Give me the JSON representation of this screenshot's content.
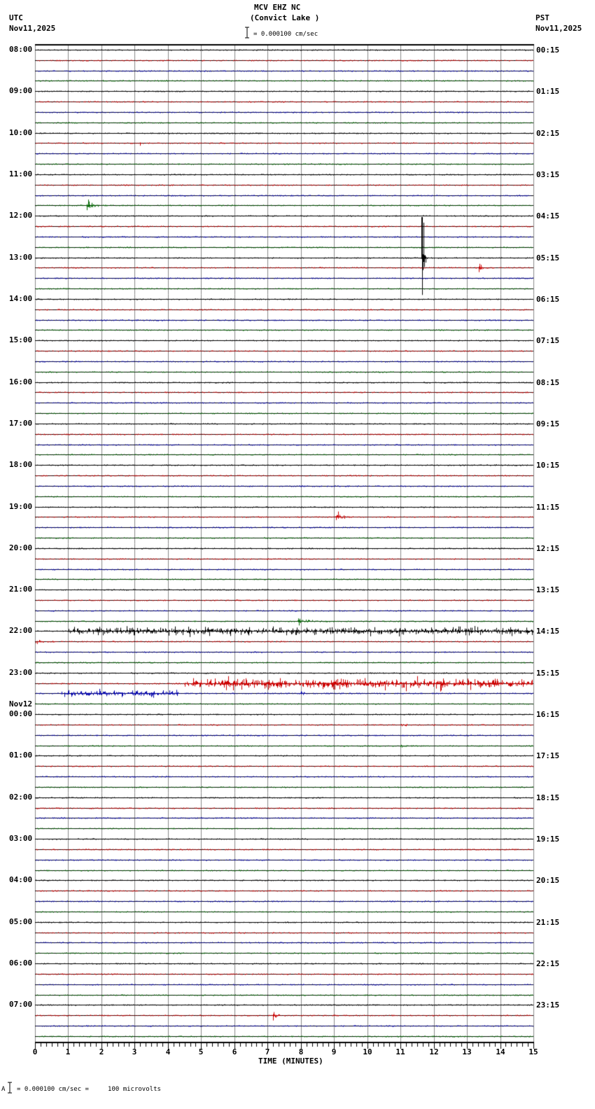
{
  "header": {
    "station": "MCV EHZ NC",
    "location": "(Convict Lake )",
    "scale_text": "= 0.000100 cm/sec",
    "left_tz": "UTC",
    "left_date": "Nov11,2025",
    "right_tz": "PST",
    "right_date": "Nov11,2025"
  },
  "footer": {
    "scale_text": "= 0.000100 cm/sec =     100 microvolts",
    "prefix": "A"
  },
  "chart_data": {
    "type": "seismogram",
    "title": "MCV EHZ NC (Convict Lake )",
    "xlabel": "TIME (MINUTES)",
    "ylabel_left": "UTC",
    "ylabel_right": "PST",
    "xlim": [
      0,
      15
    ],
    "x_ticks": [
      "0",
      "1",
      "2",
      "3",
      "4",
      "5",
      "6",
      "7",
      "8",
      "9",
      "10",
      "11",
      "12",
      "13",
      "14",
      "15"
    ],
    "minutes_per_trace": 15,
    "traces_per_hour": 4,
    "trace_colors": [
      "#000000",
      "#cc0000",
      "#0000aa",
      "#006600"
    ],
    "grid": true,
    "scale": "0.000100 cm/sec = 100 microvolts",
    "left_hour_labels": [
      {
        "row": 0,
        "text": "08:00"
      },
      {
        "row": 4,
        "text": "09:00"
      },
      {
        "row": 8,
        "text": "10:00"
      },
      {
        "row": 12,
        "text": "11:00"
      },
      {
        "row": 16,
        "text": "12:00"
      },
      {
        "row": 20,
        "text": "13:00"
      },
      {
        "row": 24,
        "text": "14:00"
      },
      {
        "row": 28,
        "text": "15:00"
      },
      {
        "row": 32,
        "text": "16:00"
      },
      {
        "row": 36,
        "text": "17:00"
      },
      {
        "row": 40,
        "text": "18:00"
      },
      {
        "row": 44,
        "text": "19:00"
      },
      {
        "row": 48,
        "text": "20:00"
      },
      {
        "row": 52,
        "text": "21:00"
      },
      {
        "row": 56,
        "text": "22:00"
      },
      {
        "row": 60,
        "text": "23:00"
      },
      {
        "row": 64,
        "text": "00:00",
        "date": "Nov12"
      },
      {
        "row": 68,
        "text": "01:00"
      },
      {
        "row": 72,
        "text": "02:00"
      },
      {
        "row": 76,
        "text": "03:00"
      },
      {
        "row": 80,
        "text": "04:00"
      },
      {
        "row": 84,
        "text": "05:00"
      },
      {
        "row": 88,
        "text": "06:00"
      },
      {
        "row": 92,
        "text": "07:00"
      }
    ],
    "right_hour_labels": [
      {
        "row": 0,
        "text": "00:15"
      },
      {
        "row": 4,
        "text": "01:15"
      },
      {
        "row": 8,
        "text": "02:15"
      },
      {
        "row": 12,
        "text": "03:15"
      },
      {
        "row": 16,
        "text": "04:15"
      },
      {
        "row": 20,
        "text": "05:15"
      },
      {
        "row": 24,
        "text": "06:15"
      },
      {
        "row": 28,
        "text": "07:15"
      },
      {
        "row": 32,
        "text": "08:15"
      },
      {
        "row": 36,
        "text": "09:15"
      },
      {
        "row": 40,
        "text": "10:15"
      },
      {
        "row": 44,
        "text": "11:15"
      },
      {
        "row": 48,
        "text": "12:15"
      },
      {
        "row": 52,
        "text": "13:15"
      },
      {
        "row": 56,
        "text": "14:15"
      },
      {
        "row": 60,
        "text": "15:15"
      },
      {
        "row": 64,
        "text": "16:15"
      },
      {
        "row": 68,
        "text": "17:15"
      },
      {
        "row": 72,
        "text": "18:15"
      },
      {
        "row": 76,
        "text": "19:15"
      },
      {
        "row": 80,
        "text": "20:15"
      },
      {
        "row": 84,
        "text": "21:15"
      },
      {
        "row": 88,
        "text": "22:15"
      },
      {
        "row": 92,
        "text": "23:15"
      }
    ],
    "events": [
      {
        "row": 3,
        "minute": 2.0,
        "amp": 3,
        "dur": 0.4,
        "note": "small green blip"
      },
      {
        "row": 9,
        "minute": 3.15,
        "amp": 4,
        "dur": 0.3,
        "note": "small red blip"
      },
      {
        "row": 15,
        "minute": 1.55,
        "amp": 10,
        "dur": 0.8,
        "note": "green local event"
      },
      {
        "row": 20,
        "minute": 11.65,
        "amp": 58,
        "dur": 0.2,
        "note": "large black spike spanning traces"
      },
      {
        "row": 21,
        "minute": 13.35,
        "amp": 10,
        "dur": 0.3,
        "note": "red event"
      },
      {
        "row": 45,
        "minute": 9.05,
        "amp": 12,
        "dur": 0.6,
        "note": "red event"
      },
      {
        "row": 55,
        "minute": 7.9,
        "amp": 6,
        "dur": 1.0,
        "note": "green noise"
      },
      {
        "row": 56,
        "minute": 1.0,
        "amp": 9,
        "dur": 14.0,
        "note": "black noisy trace"
      },
      {
        "row": 57,
        "minute": 0.0,
        "amp": 5,
        "dur": 0.8,
        "note": "red burst at start"
      },
      {
        "row": 61,
        "minute": 4.5,
        "amp": 12,
        "dur": 10.5,
        "note": "red noisy trace with peaks ~10 and ~12.9"
      },
      {
        "row": 62,
        "minute": 0.8,
        "amp": 7,
        "dur": 3.5,
        "note": "blue noise bursts"
      },
      {
        "row": 62,
        "minute": 8.0,
        "amp": 8,
        "dur": 0.3,
        "note": "blue event"
      },
      {
        "row": 65,
        "minute": 11.0,
        "amp": 3,
        "dur": 0.6,
        "note": "black small noise"
      },
      {
        "row": 67,
        "minute": 10.95,
        "amp": 5,
        "dur": 0.3,
        "note": "blue blip"
      },
      {
        "row": 93,
        "minute": 7.15,
        "amp": 8,
        "dur": 0.4,
        "note": "red event"
      }
    ]
  }
}
